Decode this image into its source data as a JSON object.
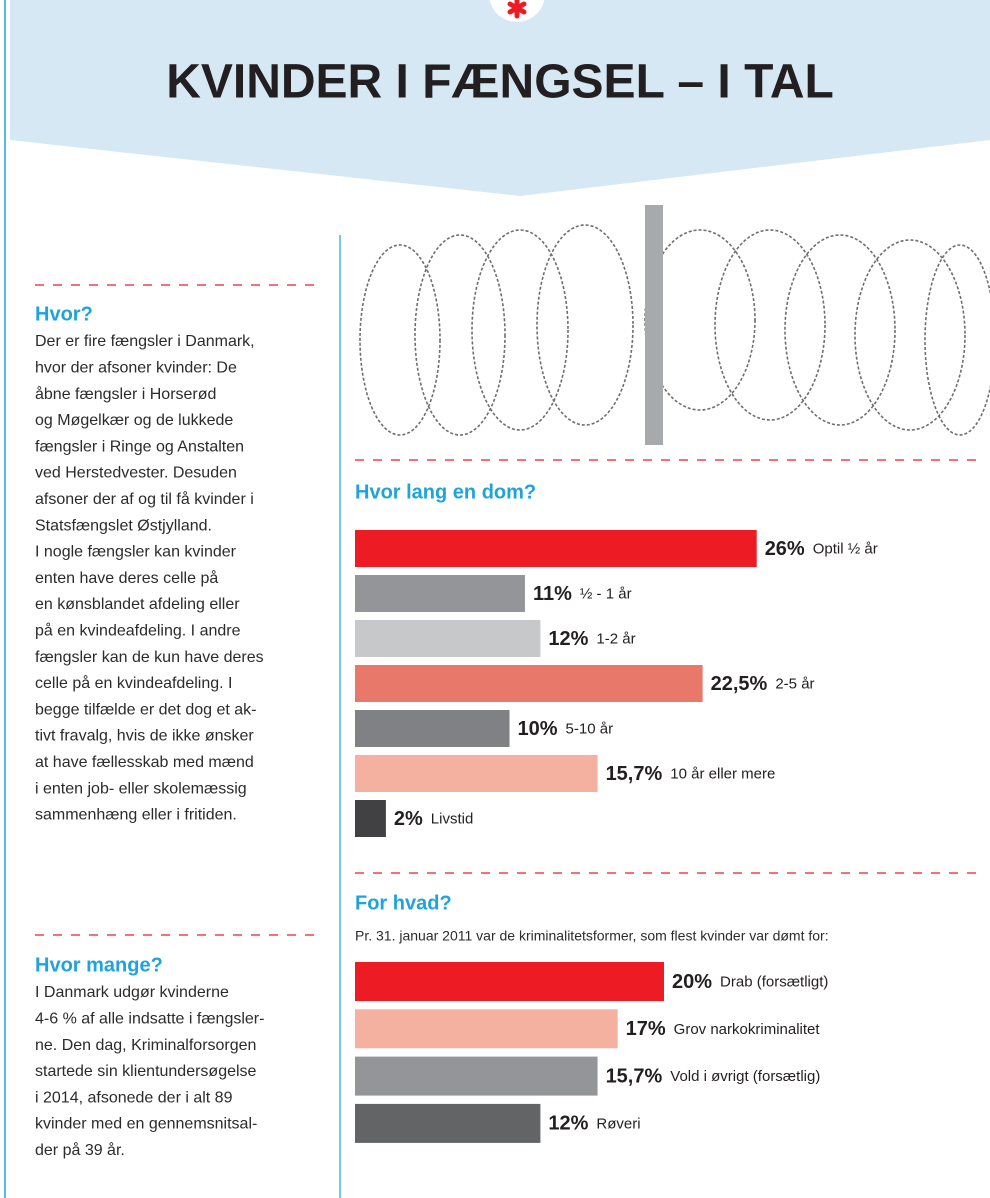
{
  "header": {
    "title": "KVINDER I FÆNGSEL – I TAL"
  },
  "sections": [
    {
      "heading": "Hvor?",
      "lines": [
        "Der er fire fængsler i Danmark,",
        "hvor der afsoner kvinder: De",
        "åbne fængsler i Horserød",
        "og Møgelkær og de lukkede",
        "fængsler i Ringe og Anstalten",
        "ved Herstedvester. Desuden",
        "afsoner der af og til få kvinder i",
        "Statsfængslet Østjylland.",
        "I nogle fængsler kan kvinder",
        "enten have deres celle på",
        "en kønsblandet afdeling eller",
        "på en kvindeafdeling. I andre",
        "fængsler kan de kun have deres",
        "celle på en kvindeafdeling. I",
        "begge tilfælde er det dog et ak-",
        "tivt fravalg, hvis de ikke ønsker",
        "at have fællesskab med mænd",
        "i enten job- eller skolemæssig",
        "sammenhæng eller i fritiden."
      ]
    },
    {
      "heading": "Hvor mange?",
      "lines": [
        "I Danmark udgør kvinderne",
        "4-6 % af alle indsatte i fængsler-",
        "ne. Den dag, Kriminalforsorgen",
        "startede sin klientundersøgelse",
        "i 2014, afsonede der i alt 89",
        "kvinder med en gennemsnitsal-",
        "der på 39 år."
      ]
    }
  ],
  "chart_data": [
    {
      "type": "bar",
      "title": "Hvor lang en dom?",
      "categories": [
        "Optil ½ år",
        "½ - 1 år",
        "1-2 år",
        "2-5 år",
        "5-10 år",
        "10 år eller mere",
        "Livstid"
      ],
      "values": [
        26,
        11,
        12,
        22.5,
        10,
        15.7,
        2
      ],
      "value_labels": [
        "26%",
        "11%",
        "12%",
        "22,5%",
        "10%",
        "15,7%",
        "2%"
      ],
      "colors": [
        "#ed1c24",
        "#939598",
        "#c7c8ca",
        "#e8786a",
        "#808184",
        "#f4b19f",
        "#414042"
      ]
    },
    {
      "type": "bar",
      "title": "For hvad?",
      "subtitle": "Pr. 31. januar 2011 var de kriminalitetsformer, som flest kvinder var dømt for:",
      "categories": [
        "Drab (forsætligt)",
        "Grov narkokriminalitet",
        "Vold i øvrigt (forsætlig)",
        "Røveri"
      ],
      "values": [
        20,
        17,
        15.7,
        12
      ],
      "value_labels": [
        "20%",
        "17%",
        "15,7%",
        "12%"
      ],
      "colors": [
        "#ed1c24",
        "#f4b19f",
        "#939598",
        "#636466"
      ]
    }
  ]
}
